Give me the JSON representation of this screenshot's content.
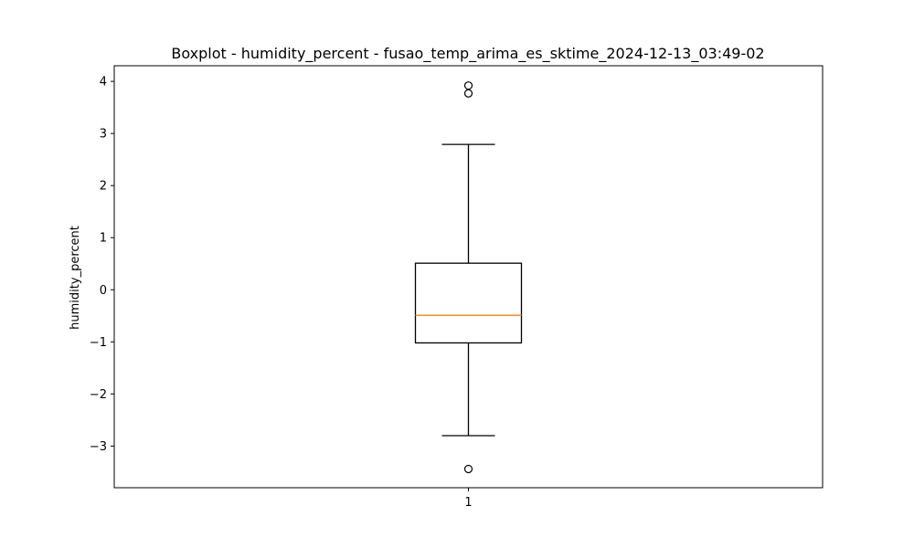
{
  "chart_data": {
    "type": "boxplot",
    "title": "Boxplot - humidity_percent - fusao_temp_arima_es_sktime_2024-12-13_03:49-02",
    "xlabel": "",
    "ylabel": "humidity_percent",
    "categories": [
      "1"
    ],
    "ylim": [
      -3.8,
      4.3
    ],
    "yticks": [
      -3,
      -2,
      -1,
      0,
      1,
      2,
      3,
      4
    ],
    "ytick_labels": [
      "−3",
      "−2",
      "−1",
      "0",
      "1",
      "2",
      "3",
      "4"
    ],
    "boxes": [
      {
        "category": "1",
        "whisker_low": -2.8,
        "q1": -1.02,
        "median": -0.49,
        "q3": 0.51,
        "whisker_high": 2.79,
        "outliers": [
          3.92,
          3.77,
          -3.44
        ]
      }
    ],
    "grid": false,
    "colors": {
      "box": "#000000",
      "median": "#ff7f0e",
      "outlier": "#000000"
    }
  }
}
